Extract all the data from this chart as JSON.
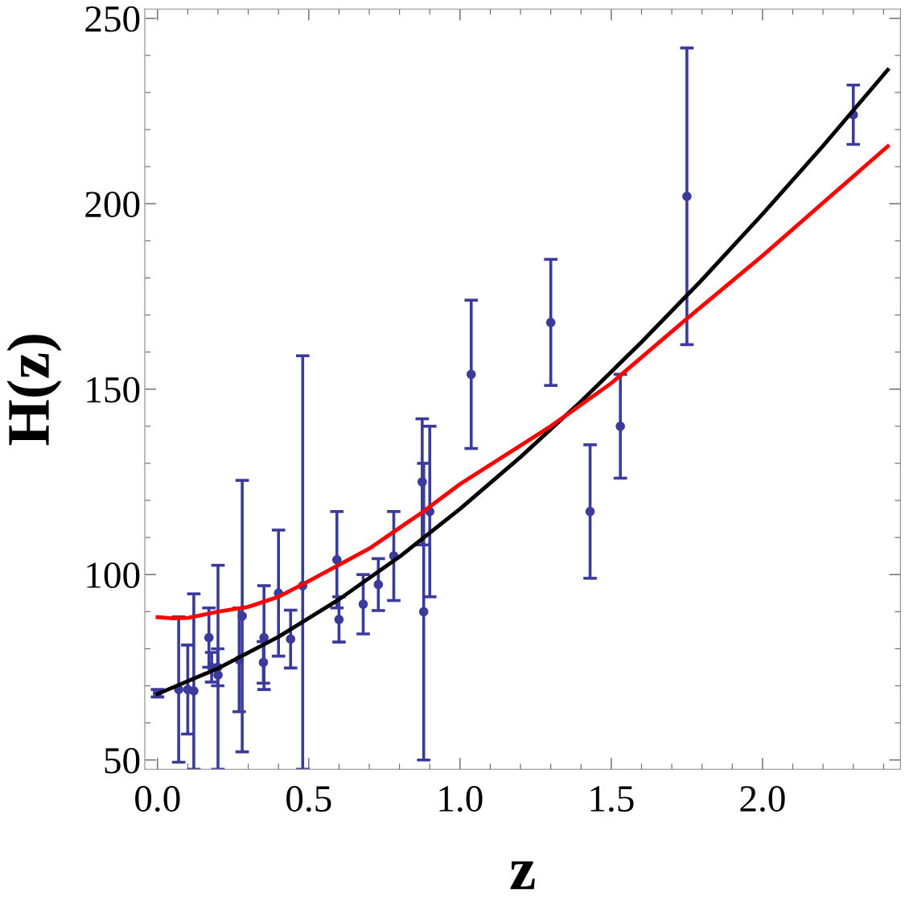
{
  "chart_data": {
    "type": "scatter",
    "xlabel": "z",
    "ylabel": "H(z)",
    "xlim": [
      -0.042,
      2.456
    ],
    "ylim": [
      47.5,
      252.5
    ],
    "xticks": [
      {
        "value": 0,
        "label": "0.0"
      },
      0.5,
      {
        "value": 1,
        "label": "1.0"
      },
      1.5,
      {
        "value": 2,
        "label": "2.0"
      }
    ],
    "yticks": [
      50,
      100,
      150,
      200,
      250
    ],
    "grid": false,
    "legend": false,
    "series": [
      {
        "color": "#3b3b9b",
        "marker": "circle",
        "x": [
          0.0,
          0.07,
          0.1,
          0.12,
          0.17,
          0.179,
          0.199,
          0.2,
          0.27,
          0.28,
          0.352,
          0.35,
          0.4,
          0.44,
          0.48,
          0.593,
          0.6,
          0.68,
          0.73,
          0.781,
          0.875,
          0.88,
          0.9,
          1.037,
          1.3,
          1.43,
          1.53,
          1.75,
          2.3
        ],
        "values": [
          68,
          69,
          69,
          68.6,
          83,
          75,
          75,
          72.9,
          77,
          88.8,
          83,
          76.3,
          95,
          82.6,
          97,
          104,
          87.9,
          92,
          97.3,
          105,
          125,
          90,
          117,
          154,
          168,
          117,
          140,
          202,
          224
        ],
        "errors": [
          1,
          19.6,
          12,
          [
            47.5,
            94.8
          ],
          8,
          4,
          5,
          [
            47.5,
            102.5
          ],
          14,
          36.6,
          14,
          5.6,
          17,
          7.8,
          [
            47.5,
            159
          ],
          13,
          6.1,
          8,
          7,
          12,
          17,
          40,
          23,
          20,
          17,
          18,
          14,
          40,
          8
        ]
      },
      {
        "type": "line",
        "color": "#000000",
        "marker": "none",
        "line_style": "solid",
        "x": [
          0.0,
          0.2,
          0.4,
          0.6,
          0.8,
          1.0,
          1.2,
          1.4,
          1.6,
          1.8,
          2.0,
          2.2,
          2.414
        ],
        "values": [
          67.8,
          74.7,
          83.2,
          93.3,
          104.8,
          117.7,
          131.7,
          146.7,
          162.7,
          179.5,
          197.2,
          215.6,
          236.1
        ]
      },
      {
        "type": "line",
        "color": "#ff0000",
        "marker": "none",
        "line_style": "solid",
        "x": [
          0.0,
          0.05,
          0.1,
          0.2,
          0.3,
          0.4,
          0.49,
          0.7,
          0.87,
          1.0,
          1.3,
          1.5,
          1.75,
          2.0,
          2.414
        ],
        "values": [
          88.5,
          88.2,
          88.3,
          90,
          91.3,
          94,
          97.8,
          107,
          116.5,
          124.4,
          140,
          151.6,
          169,
          186,
          215.5
        ]
      }
    ]
  }
}
